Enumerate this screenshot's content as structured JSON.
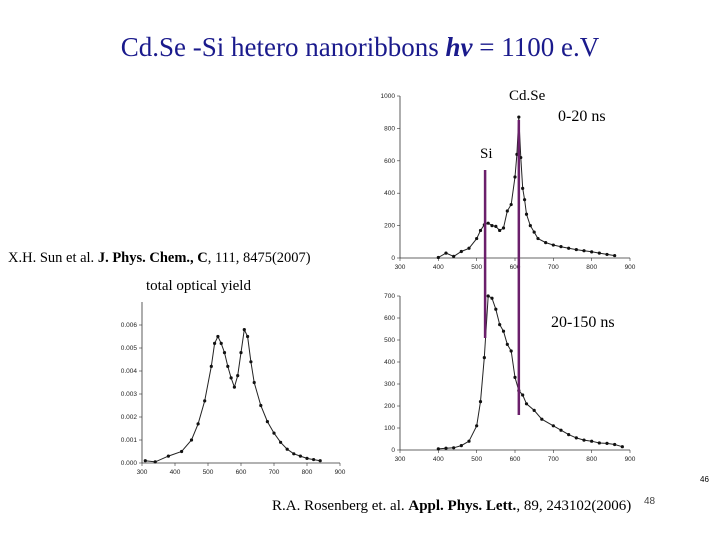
{
  "title": {
    "pre": "Cd.Se -Si hetero nanoribbons ",
    "hv": "hv",
    "post": " = 1100 e.V"
  },
  "labels": {
    "cdse": "Cd.Se",
    "si": "Si",
    "time1": "0-20 ns",
    "time2": "20-150 ns",
    "toy": "total optical yield"
  },
  "citation1": {
    "authors": "X.H. Sun et al. ",
    "journal": "J. Phys. Chem., C",
    "rest": ", 111, 8475(2007)"
  },
  "citation2": {
    "authors": "R.A. Rosenberg et. al. ",
    "journal": "Appl. Phys. Lett.",
    "rest": ", 89, 243102(2006)"
  },
  "slide_number": "46",
  "page_overlay": "48",
  "colors": {
    "title": "#1a1a8c",
    "marker": "#6b1f6b"
  },
  "markers": [
    {
      "name": "Si",
      "x": 522
    },
    {
      "name": "CdSe",
      "x": 610
    }
  ],
  "chart_data": [
    {
      "id": "top",
      "type": "scatter",
      "title": "0-20 ns",
      "xlim": [
        300,
        900
      ],
      "ylim": [
        0,
        1000
      ],
      "xticks": [
        300,
        400,
        500,
        600,
        700,
        800,
        900
      ],
      "yticks": [
        0,
        200,
        400,
        600,
        800,
        1000
      ],
      "x": [
        400,
        420,
        440,
        460,
        480,
        500,
        510,
        520,
        530,
        540,
        550,
        560,
        570,
        580,
        590,
        600,
        605,
        610,
        615,
        620,
        625,
        630,
        640,
        650,
        660,
        680,
        700,
        720,
        740,
        760,
        780,
        800,
        820,
        840,
        860
      ],
      "y": [
        3,
        30,
        10,
        40,
        60,
        120,
        170,
        205,
        215,
        200,
        195,
        170,
        185,
        290,
        330,
        500,
        640,
        870,
        620,
        430,
        360,
        270,
        200,
        160,
        120,
        95,
        80,
        70,
        60,
        52,
        45,
        38,
        30,
        22,
        15
      ]
    },
    {
      "id": "bottom",
      "type": "scatter",
      "title": "20-150 ns",
      "xlim": [
        300,
        900
      ],
      "ylim": [
        0,
        700
      ],
      "xticks": [
        300,
        400,
        500,
        600,
        700,
        800,
        900
      ],
      "yticks": [
        0,
        100,
        200,
        300,
        400,
        500,
        600,
        700
      ],
      "x": [
        400,
        420,
        440,
        460,
        480,
        500,
        510,
        520,
        530,
        540,
        550,
        560,
        570,
        580,
        590,
        600,
        610,
        620,
        630,
        650,
        670,
        700,
        720,
        740,
        760,
        780,
        800,
        820,
        840,
        860,
        880
      ],
      "y": [
        5,
        8,
        10,
        20,
        40,
        110,
        220,
        420,
        700,
        690,
        640,
        570,
        540,
        480,
        450,
        330,
        270,
        250,
        210,
        180,
        140,
        110,
        90,
        70,
        55,
        45,
        40,
        32,
        30,
        25,
        15
      ]
    },
    {
      "id": "toy",
      "type": "scatter",
      "title": "total optical yield",
      "xlim": [
        300,
        900
      ],
      "ylim": [
        0,
        0.007
      ],
      "xticks": [
        300,
        400,
        500,
        600,
        700,
        800,
        900
      ],
      "yticks": [
        0,
        0.001,
        0.002,
        0.003,
        0.004,
        0.005,
        0.006
      ],
      "ytickLabels": [
        "0.000",
        "0.001",
        "0.002",
        "0.003",
        "0.004",
        "0.005",
        "0.006"
      ],
      "x": [
        310,
        340,
        380,
        420,
        450,
        470,
        490,
        510,
        520,
        530,
        540,
        550,
        560,
        570,
        580,
        590,
        600,
        610,
        620,
        630,
        640,
        660,
        680,
        700,
        720,
        740,
        760,
        780,
        800,
        820,
        840
      ],
      "y": [
        0.0001,
        5e-05,
        0.0003,
        0.0005,
        0.001,
        0.0017,
        0.0027,
        0.0042,
        0.0052,
        0.0055,
        0.0052,
        0.0048,
        0.0042,
        0.0037,
        0.0033,
        0.0038,
        0.0048,
        0.0058,
        0.0055,
        0.0044,
        0.0035,
        0.0025,
        0.0018,
        0.0013,
        0.0009,
        0.0006,
        0.0004,
        0.0003,
        0.0002,
        0.00015,
        0.0001
      ]
    }
  ]
}
